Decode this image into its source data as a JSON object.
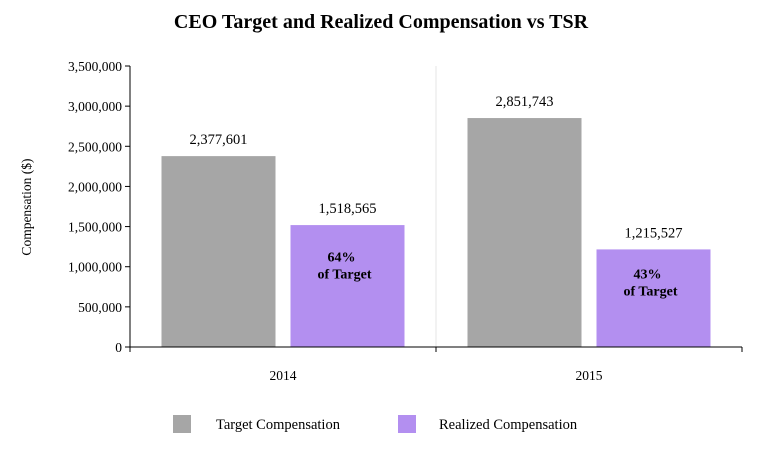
{
  "chart_data": {
    "type": "bar",
    "title": "CEO Target and Realized Compensation vs TSR",
    "xlabel": "",
    "ylabel": "Compensation ($)",
    "ylim": [
      0,
      3500000
    ],
    "yticks": [
      "0",
      "500,000",
      "1,000,000",
      "1,500,000",
      "2,000,000",
      "2,500,000",
      "3,000,000",
      "3,500,000"
    ],
    "categories": [
      "2014",
      "2015"
    ],
    "series": [
      {
        "name": "Target Compensation",
        "color": "#a6a6a6",
        "values": [
          2377601,
          2851743
        ],
        "labels": [
          "2,377,601",
          "2,851,743"
        ]
      },
      {
        "name": "Realized Compensation",
        "color": "#b38ff0",
        "values": [
          1518565,
          1215527
        ],
        "labels": [
          "1,518,565",
          "1,215,527"
        ]
      }
    ],
    "annotations": [
      {
        "pct": "64%",
        "text": "of Target"
      },
      {
        "pct": "43%",
        "text": "of Target"
      }
    ],
    "legend_position": "bottom",
    "grid": "vertical-separators"
  }
}
